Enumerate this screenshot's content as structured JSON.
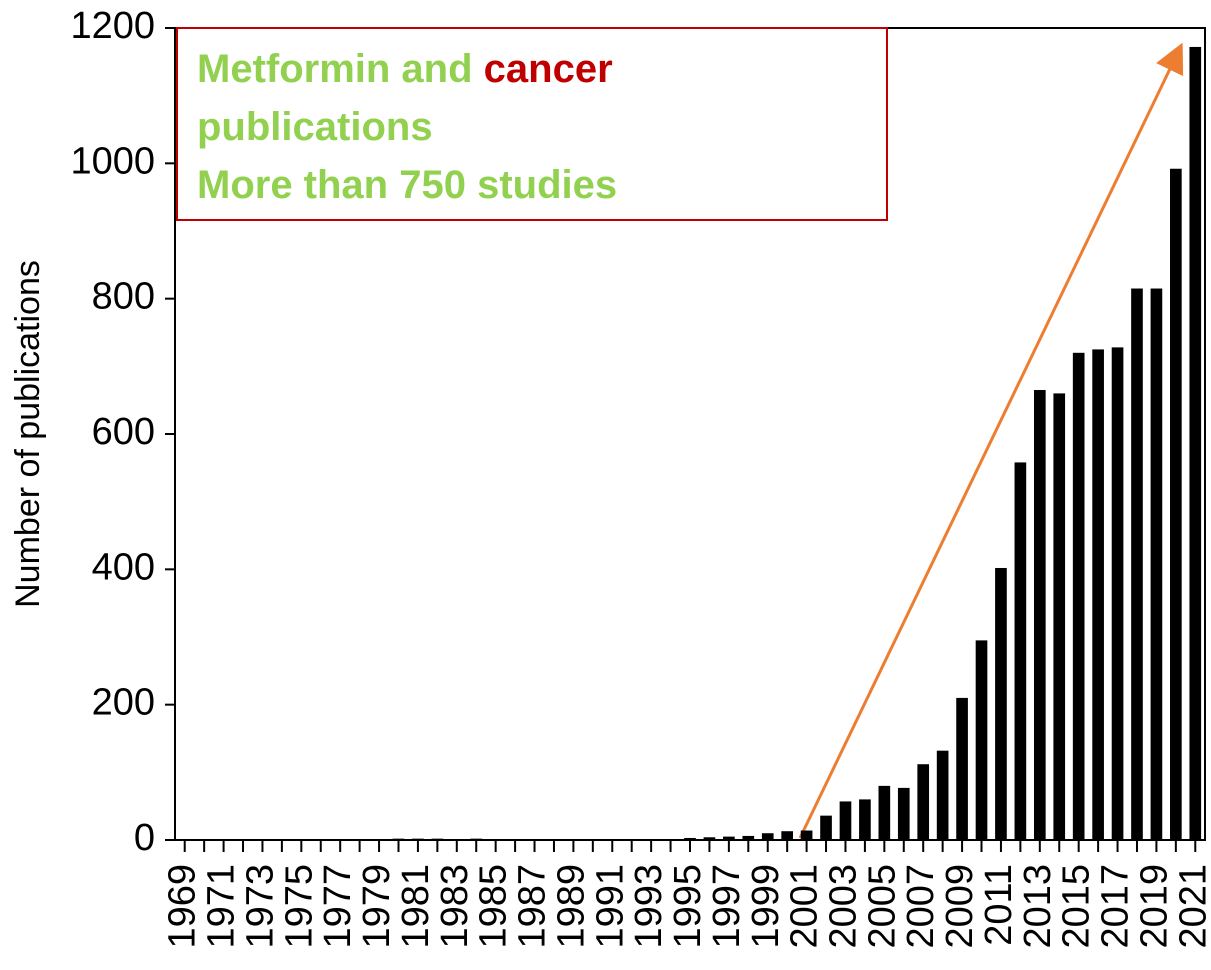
{
  "chart_data": {
    "type": "bar",
    "y_label": "Number of publications",
    "categories": [
      "1969",
      null,
      "1971",
      null,
      "1973",
      null,
      "1975",
      null,
      "1977",
      null,
      "1979",
      null,
      "1981",
      null,
      "1983",
      null,
      "1985",
      null,
      "1987",
      null,
      "1989",
      null,
      "1991",
      null,
      "1993",
      null,
      "1995",
      null,
      "1997",
      null,
      "1999",
      null,
      "2001",
      null,
      "2003",
      null,
      "2005",
      null,
      "2007",
      null,
      "2009",
      null,
      "2011",
      null,
      "2013",
      null,
      "2015",
      null,
      "2017",
      null,
      "2019",
      null,
      "2021"
    ],
    "values": [
      0,
      0,
      0,
      0,
      0,
      0,
      0,
      0,
      0,
      0,
      0,
      2,
      2,
      2,
      1,
      2,
      1,
      1,
      1,
      1,
      0,
      0,
      0,
      0,
      1,
      1,
      3,
      4,
      5,
      6,
      10,
      13,
      14,
      36,
      57,
      60,
      80,
      77,
      112,
      132,
      210,
      295,
      402,
      558,
      665,
      660,
      720,
      725,
      728,
      815,
      815,
      992,
      1172
    ],
    "color": "#000000",
    "ylim": [
      0,
      1200
    ],
    "yticks": [
      0,
      200,
      400,
      600,
      800,
      1000,
      1200
    ],
    "annotation": [
      [
        {
          "text": "Metformin and ",
          "color": "#92d050"
        },
        {
          "text": "cancer",
          "color": "#c00000"
        }
      ],
      [
        {
          "text": "publications",
          "color": "#92d050"
        }
      ],
      [
        {
          "text": "More than 750 studies",
          "color": "#92d050"
        }
      ]
    ]
  }
}
